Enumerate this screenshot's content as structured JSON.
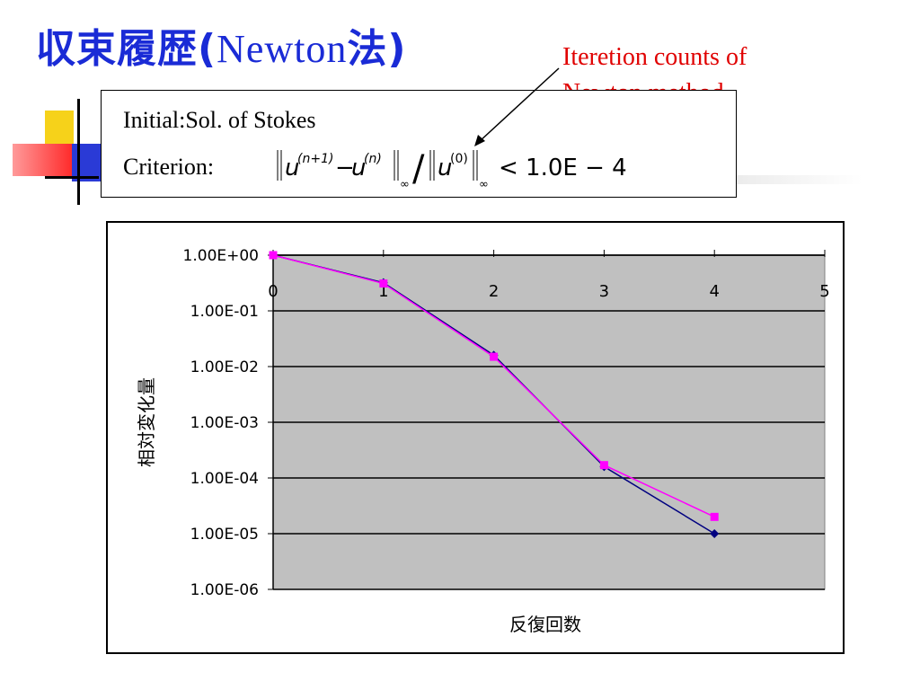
{
  "slide": {
    "title_ja_1": "収束履歴(",
    "title_latin": "Newton",
    "title_ja_2": "法)",
    "annotation_line1": "Iteretion counts of",
    "annotation_line2": "Newton method",
    "initial_label": "Initial",
    "initial_value": "Sol. of Stokes",
    "criterion_label": "Criterion",
    "criterion_colon": ":",
    "criterion_u": "u",
    "criterion_sup_n1": "(n+1)",
    "criterion_minus": "−",
    "criterion_sup_n": "(n)",
    "criterion_sup_0": "(0)",
    "criterion_inf": "∞",
    "criterion_slash": "/",
    "criterion_rhs": "< 1.0E − 4",
    "colors": {
      "title": "#1a2bd6",
      "annotation": "#e00000"
    }
  },
  "chart_data": {
    "type": "line",
    "title": "",
    "xlabel": "反復回数",
    "ylabel": "相対変化量",
    "x_ticks": [
      "0",
      "1",
      "2",
      "3",
      "4",
      "5"
    ],
    "xlim": [
      0,
      5
    ],
    "y_scale": "log",
    "y_ticks": [
      "1.00E+00",
      "1.00E-01",
      "1.00E-02",
      "1.00E-03",
      "1.00E-04",
      "1.00E-05",
      "1.00E-06"
    ],
    "ylim": [
      1e-06,
      1
    ],
    "grid": "horizontal",
    "legend": "none",
    "plot_background": "#c0c0c0",
    "series": [
      {
        "x": [
          0,
          1,
          2,
          3,
          4
        ],
        "values": [
          1.0,
          0.32,
          0.016,
          0.00016,
          1e-05
        ],
        "color": "#000080",
        "marker": "diamond"
      },
      {
        "x": [
          0,
          1,
          2,
          3,
          4
        ],
        "values": [
          1.0,
          0.31,
          0.015,
          0.00017,
          2e-05
        ],
        "color": "#ff00ff",
        "marker": "square"
      }
    ]
  }
}
